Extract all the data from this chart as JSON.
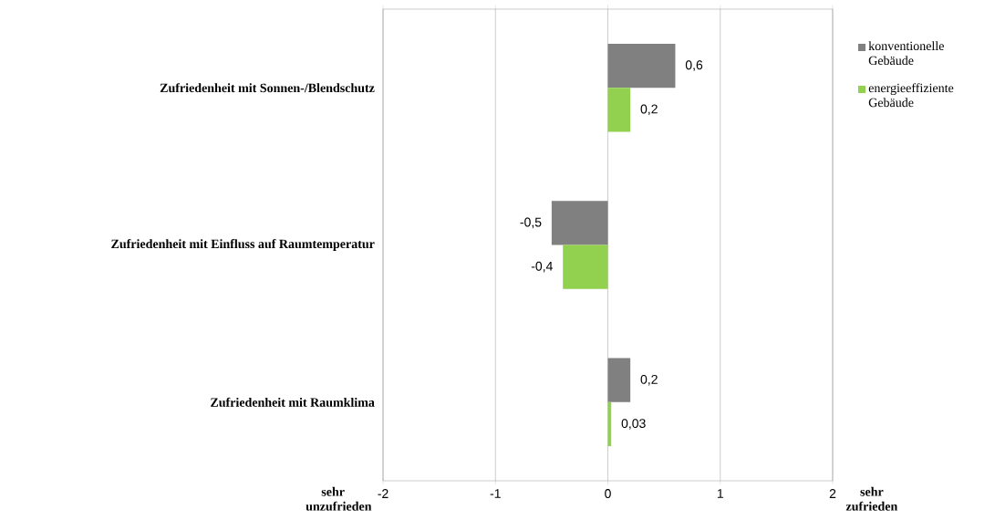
{
  "chart_data": {
    "type": "bar",
    "orientation": "horizontal",
    "categories": [
      "Zufriedenheit mit Sonnen-/Blendschutz",
      "Zufriedenheit mit Einfluss auf Raumtemperatur",
      "Zufriedenheit mit Raumklima"
    ],
    "series": [
      {
        "name": "konventionelle Gebäude",
        "color": "#808080",
        "values": [
          0.6,
          -0.5,
          0.2
        ],
        "value_labels": [
          "0,6",
          "-0,5",
          "0,2"
        ]
      },
      {
        "name": "energieeffiziente Gebäude",
        "color": "#92d050",
        "values": [
          0.2,
          -0.4,
          0.03
        ],
        "value_labels": [
          "0,2",
          "-0,4",
          "0,03"
        ]
      }
    ],
    "xlim": [
      -2,
      2
    ],
    "xticks": [
      -2,
      -1,
      0,
      1,
      2
    ],
    "grid": "x",
    "legend": "top right",
    "annotations": [
      "sehr unzufrieden",
      "sehr zufrieden"
    ]
  }
}
